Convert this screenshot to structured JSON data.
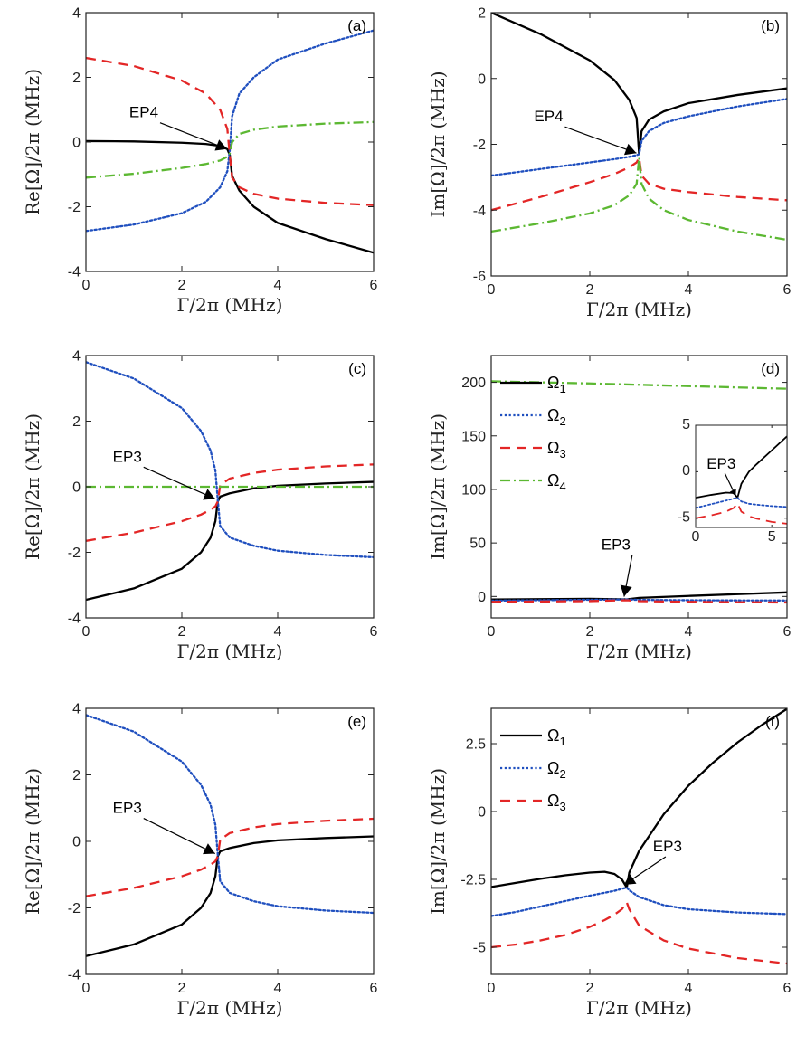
{
  "figure": {
    "type": "multi-panel line figure"
  },
  "styles": {
    "s1": {
      "color": "#000000",
      "dash": ""
    },
    "s2": {
      "color": "#1f4fbf",
      "dash": "2.2,2.6"
    },
    "s3": {
      "color": "#e32626",
      "dash": "11,7"
    },
    "s4": {
      "color": "#5cb832",
      "dash": "11,4,2,4"
    }
  },
  "chart_data": [
    {
      "type": "line",
      "panel": "(a)",
      "xlabel": "Γ/2π (MHz)",
      "ylabel": "Re[Ω]/2π (MHz)",
      "xlim": [
        0,
        6
      ],
      "ylim": [
        -4,
        4
      ],
      "xticks": [
        "0",
        "2",
        "4",
        "6"
      ],
      "yticks": [
        "-4",
        "-2",
        "0",
        "2",
        "4"
      ],
      "series": [
        {
          "name": "Ω1",
          "style": "s1",
          "x": [
            0,
            1,
            2,
            2.5,
            2.8,
            2.95,
            3.0,
            3.05,
            3.2,
            3.5,
            4,
            5,
            6
          ],
          "y": [
            0.03,
            0.02,
            -0.02,
            -0.06,
            -0.12,
            -0.22,
            -0.4,
            -1.05,
            -1.5,
            -2.0,
            -2.5,
            -3.0,
            -3.42
          ]
        },
        {
          "name": "Ω2",
          "style": "s2",
          "x": [
            0,
            1,
            2,
            2.5,
            2.8,
            2.95,
            3.0,
            3.05,
            3.2,
            3.5,
            4,
            5,
            6
          ],
          "y": [
            -2.75,
            -2.55,
            -2.2,
            -1.85,
            -1.4,
            -0.9,
            -0.25,
            0.8,
            1.5,
            2.0,
            2.55,
            3.05,
            3.45
          ]
        },
        {
          "name": "Ω3",
          "style": "s3",
          "x": [
            0,
            1,
            2,
            2.5,
            2.8,
            2.95,
            3.0,
            3.05,
            3.2,
            3.5,
            4,
            5,
            6
          ],
          "y": [
            2.6,
            2.35,
            1.9,
            1.5,
            1.0,
            0.4,
            -0.4,
            -1.1,
            -1.4,
            -1.6,
            -1.75,
            -1.88,
            -1.95
          ]
        },
        {
          "name": "Ω4",
          "style": "s4",
          "x": [
            0,
            1,
            2,
            2.5,
            2.8,
            2.95,
            3.0,
            3.05,
            3.2,
            3.5,
            4,
            5,
            6
          ],
          "y": [
            -1.1,
            -0.98,
            -0.8,
            -0.68,
            -0.57,
            -0.45,
            -0.35,
            0.0,
            0.25,
            0.38,
            0.48,
            0.57,
            0.62
          ]
        }
      ],
      "annotation": {
        "text": "EP4",
        "x": 3.0,
        "y": -0.3
      }
    },
    {
      "type": "line",
      "panel": "(b)",
      "xlabel": "Γ/2π (MHz)",
      "ylabel": "Im[Ω]/2π (MHz)",
      "xlim": [
        0,
        6
      ],
      "ylim": [
        -6,
        2
      ],
      "xticks": [
        "0",
        "2",
        "4",
        "6"
      ],
      "yticks": [
        "-6",
        "-4",
        "-2",
        "0",
        "2"
      ],
      "series": [
        {
          "name": "Ω1",
          "style": "s1",
          "x": [
            0,
            1,
            2,
            2.5,
            2.8,
            2.95,
            3.0,
            3.05,
            3.2,
            3.5,
            4,
            5,
            6
          ],
          "y": [
            2.0,
            1.35,
            0.55,
            -0.05,
            -0.65,
            -1.2,
            -2.3,
            -1.6,
            -1.25,
            -1.0,
            -0.75,
            -0.5,
            -0.3
          ]
        },
        {
          "name": "Ω2",
          "style": "s2",
          "x": [
            0,
            1,
            2,
            2.5,
            2.8,
            2.95,
            3.0,
            3.05,
            3.2,
            3.5,
            4,
            5,
            6
          ],
          "y": [
            -2.95,
            -2.75,
            -2.55,
            -2.45,
            -2.38,
            -2.33,
            -2.3,
            -1.9,
            -1.6,
            -1.35,
            -1.15,
            -0.85,
            -0.62
          ]
        },
        {
          "name": "Ω3",
          "style": "s3",
          "x": [
            0,
            1,
            2,
            2.5,
            2.8,
            2.95,
            3.0,
            3.05,
            3.2,
            3.5,
            4,
            5,
            6
          ],
          "y": [
            -4.0,
            -3.6,
            -3.15,
            -2.9,
            -2.7,
            -2.55,
            -2.4,
            -2.95,
            -3.2,
            -3.35,
            -3.45,
            -3.6,
            -3.7
          ]
        },
        {
          "name": "Ω4",
          "style": "s4",
          "x": [
            0,
            1,
            2,
            2.5,
            2.8,
            2.95,
            3.0,
            3.05,
            3.2,
            3.5,
            4,
            5,
            6
          ],
          "y": [
            -4.65,
            -4.4,
            -4.1,
            -3.85,
            -3.55,
            -3.2,
            -2.4,
            -3.2,
            -3.65,
            -4.0,
            -4.3,
            -4.65,
            -4.9
          ]
        }
      ],
      "annotation": {
        "text": "EP4",
        "x": 3.0,
        "y": -2.35
      }
    },
    {
      "type": "line",
      "panel": "(c)",
      "xlabel": "Γ/2π (MHz)",
      "ylabel": "Re[Ω]/2π (MHz)",
      "xlim": [
        0,
        6
      ],
      "ylim": [
        -4,
        4
      ],
      "xticks": [
        "0",
        "2",
        "4",
        "6"
      ],
      "yticks": [
        "-4",
        "-2",
        "0",
        "2",
        "4"
      ],
      "series": [
        {
          "name": "Ω1",
          "style": "s1",
          "x": [
            0,
            1,
            2,
            2.4,
            2.6,
            2.7,
            2.75,
            2.8,
            3,
            3.5,
            4,
            5,
            6
          ],
          "y": [
            -3.45,
            -3.1,
            -2.5,
            -2.0,
            -1.55,
            -1.05,
            -0.45,
            -0.3,
            -0.2,
            -0.05,
            0.03,
            0.1,
            0.15
          ]
        },
        {
          "name": "Ω2",
          "style": "s2",
          "x": [
            0,
            1,
            2,
            2.4,
            2.6,
            2.7,
            2.75,
            2.8,
            3,
            3.5,
            4,
            5,
            6
          ],
          "y": [
            3.8,
            3.3,
            2.4,
            1.7,
            1.1,
            0.5,
            -0.4,
            -1.2,
            -1.55,
            -1.8,
            -1.95,
            -2.08,
            -2.15
          ]
        },
        {
          "name": "Ω3",
          "style": "s3",
          "x": [
            0,
            1,
            2,
            2.4,
            2.6,
            2.7,
            2.75,
            2.8,
            3,
            3.5,
            4,
            5,
            6
          ],
          "y": [
            -1.65,
            -1.4,
            -1.05,
            -0.85,
            -0.7,
            -0.6,
            -0.45,
            0.05,
            0.25,
            0.42,
            0.52,
            0.62,
            0.68
          ]
        },
        {
          "name": "Ω4",
          "style": "s4",
          "x": [
            0,
            6
          ],
          "y": [
            0,
            0
          ]
        }
      ],
      "annotation": {
        "text": "EP3",
        "x": 2.75,
        "y": -0.45
      }
    },
    {
      "type": "line",
      "panel": "(d)",
      "xlabel": "Γ/2π (MHz)",
      "ylabel": "Im[Ω]/2π (MHz)",
      "xlim": [
        0,
        6
      ],
      "ylim": [
        -20,
        225
      ],
      "xticks": [
        "0",
        "2",
        "4",
        "6"
      ],
      "yticks": [
        "0",
        "50",
        "100",
        "150",
        "200"
      ],
      "legend": {
        "position": "top-left",
        "entries": [
          "Ω1",
          "Ω2",
          "Ω3",
          "Ω4"
        ]
      },
      "series": [
        {
          "name": "Ω1",
          "style": "s1",
          "x": [
            0,
            1,
            2,
            2.75,
            3,
            4,
            5,
            6
          ],
          "y": [
            -2.8,
            -2.5,
            -2.2,
            -2.7,
            -1.3,
            0.5,
            2.2,
            3.8
          ]
        },
        {
          "name": "Ω2",
          "style": "s2",
          "x": [
            0,
            1,
            2,
            2.75,
            3,
            4,
            5,
            6
          ],
          "y": [
            -3.9,
            -3.5,
            -3.1,
            -2.8,
            -3.2,
            -3.5,
            -3.7,
            -3.8
          ]
        },
        {
          "name": "Ω3",
          "style": "s3",
          "x": [
            0,
            1,
            2,
            2.75,
            3,
            4,
            5,
            6
          ],
          "y": [
            -5.0,
            -4.7,
            -4.3,
            -3.5,
            -4.4,
            -5.0,
            -5.4,
            -5.6
          ]
        },
        {
          "name": "Ω4",
          "style": "s4",
          "x": [
            0,
            2,
            4,
            6
          ],
          "y": [
            201,
            199,
            196.5,
            194
          ]
        }
      ],
      "annotation": {
        "text": "EP3",
        "x": 2.75,
        "y": -2.7
      },
      "inset": {
        "xlim": [
          0,
          6
        ],
        "ylim": [
          -6,
          5
        ],
        "xticks": [
          "0",
          "5"
        ],
        "yticks": [
          "-5",
          "0",
          "5"
        ],
        "annotation": {
          "text": "EP3",
          "x": 2.75,
          "y": -2.8
        },
        "series": [
          {
            "name": "Ω1",
            "style": "s1",
            "x": [
              0,
              1,
              2,
              2.5,
              2.75,
              3,
              3.5,
              4,
              5,
              6
            ],
            "y": [
              -2.8,
              -2.5,
              -2.25,
              -2.3,
              -2.8,
              -1.3,
              0.0,
              0.8,
              2.3,
              3.8
            ]
          },
          {
            "name": "Ω2",
            "style": "s2",
            "x": [
              0,
              1,
              2,
              2.5,
              2.75,
              3,
              3.5,
              4,
              5,
              6
            ],
            "y": [
              -3.9,
              -3.5,
              -3.1,
              -2.9,
              -2.8,
              -3.2,
              -3.45,
              -3.55,
              -3.7,
              -3.8
            ]
          },
          {
            "name": "Ω3",
            "style": "s3",
            "x": [
              0,
              1,
              2,
              2.5,
              2.75,
              3,
              3.5,
              4,
              5,
              6
            ],
            "y": [
              -5.0,
              -4.7,
              -4.3,
              -3.9,
              -3.4,
              -4.3,
              -4.8,
              -5.05,
              -5.4,
              -5.6
            ]
          }
        ]
      }
    },
    {
      "type": "line",
      "panel": "(e)",
      "xlabel": "Γ/2π (MHz)",
      "ylabel": "Re[Ω]/2π (MHz)",
      "xlim": [
        0,
        6
      ],
      "ylim": [
        -4,
        4
      ],
      "xticks": [
        "0",
        "2",
        "4",
        "6"
      ],
      "yticks": [
        "-4",
        "-2",
        "0",
        "2",
        "4"
      ],
      "series": [
        {
          "name": "Ω1",
          "style": "s1",
          "x": [
            0,
            1,
            2,
            2.4,
            2.6,
            2.7,
            2.75,
            2.8,
            3,
            3.5,
            4,
            5,
            6
          ],
          "y": [
            -3.45,
            -3.1,
            -2.5,
            -2.0,
            -1.55,
            -1.05,
            -0.45,
            -0.3,
            -0.2,
            -0.05,
            0.03,
            0.1,
            0.15
          ]
        },
        {
          "name": "Ω2",
          "style": "s2",
          "x": [
            0,
            1,
            2,
            2.4,
            2.6,
            2.7,
            2.75,
            2.8,
            3,
            3.5,
            4,
            5,
            6
          ],
          "y": [
            3.8,
            3.3,
            2.4,
            1.7,
            1.1,
            0.5,
            -0.4,
            -1.2,
            -1.55,
            -1.8,
            -1.95,
            -2.08,
            -2.15
          ]
        },
        {
          "name": "Ω3",
          "style": "s3",
          "x": [
            0,
            1,
            2,
            2.4,
            2.6,
            2.7,
            2.75,
            2.8,
            3,
            3.5,
            4,
            5,
            6
          ],
          "y": [
            -1.65,
            -1.4,
            -1.05,
            -0.85,
            -0.7,
            -0.6,
            -0.45,
            0.05,
            0.25,
            0.42,
            0.52,
            0.62,
            0.68
          ]
        }
      ],
      "annotation": {
        "text": "EP3",
        "x": 2.75,
        "y": -0.45
      }
    },
    {
      "type": "line",
      "panel": "(f)",
      "xlabel": "Γ/2π (MHz)",
      "ylabel": "Im[Ω]/2π (MHz)",
      "xlim": [
        0,
        6
      ],
      "ylim": [
        -6,
        3.8
      ],
      "xticks": [
        "0",
        "2",
        "4",
        "6"
      ],
      "yticks": [
        "-5",
        "-2.5",
        "0",
        "2.5"
      ],
      "legend": {
        "position": "top-left",
        "entries": [
          "Ω1",
          "Ω2",
          "Ω3"
        ]
      },
      "series": [
        {
          "name": "Ω1",
          "style": "s1",
          "x": [
            0,
            0.5,
            1,
            1.5,
            2,
            2.3,
            2.5,
            2.65,
            2.75,
            2.8,
            3,
            3.5,
            4,
            4.5,
            5,
            5.5,
            6
          ],
          "y": [
            -2.78,
            -2.63,
            -2.48,
            -2.35,
            -2.25,
            -2.22,
            -2.3,
            -2.5,
            -2.8,
            -2.25,
            -1.45,
            -0.1,
            0.95,
            1.8,
            2.55,
            3.2,
            3.78
          ]
        },
        {
          "name": "Ω2",
          "style": "s2",
          "x": [
            0,
            0.5,
            1,
            1.5,
            2,
            2.5,
            2.75,
            2.8,
            3,
            3.5,
            4,
            5,
            6
          ],
          "y": [
            -3.85,
            -3.7,
            -3.5,
            -3.3,
            -3.1,
            -2.92,
            -2.8,
            -2.9,
            -3.15,
            -3.45,
            -3.6,
            -3.72,
            -3.78
          ]
        },
        {
          "name": "Ω3",
          "style": "s3",
          "x": [
            0,
            0.5,
            1,
            1.5,
            2,
            2.3,
            2.5,
            2.65,
            2.75,
            2.8,
            3,
            3.5,
            4,
            5,
            6
          ],
          "y": [
            -5.0,
            -4.9,
            -4.75,
            -4.55,
            -4.25,
            -4.0,
            -3.8,
            -3.6,
            -3.35,
            -3.6,
            -4.2,
            -4.75,
            -5.05,
            -5.4,
            -5.6
          ]
        }
      ],
      "annotation": {
        "text": "EP3",
        "x": 2.75,
        "y": -2.8
      }
    }
  ]
}
